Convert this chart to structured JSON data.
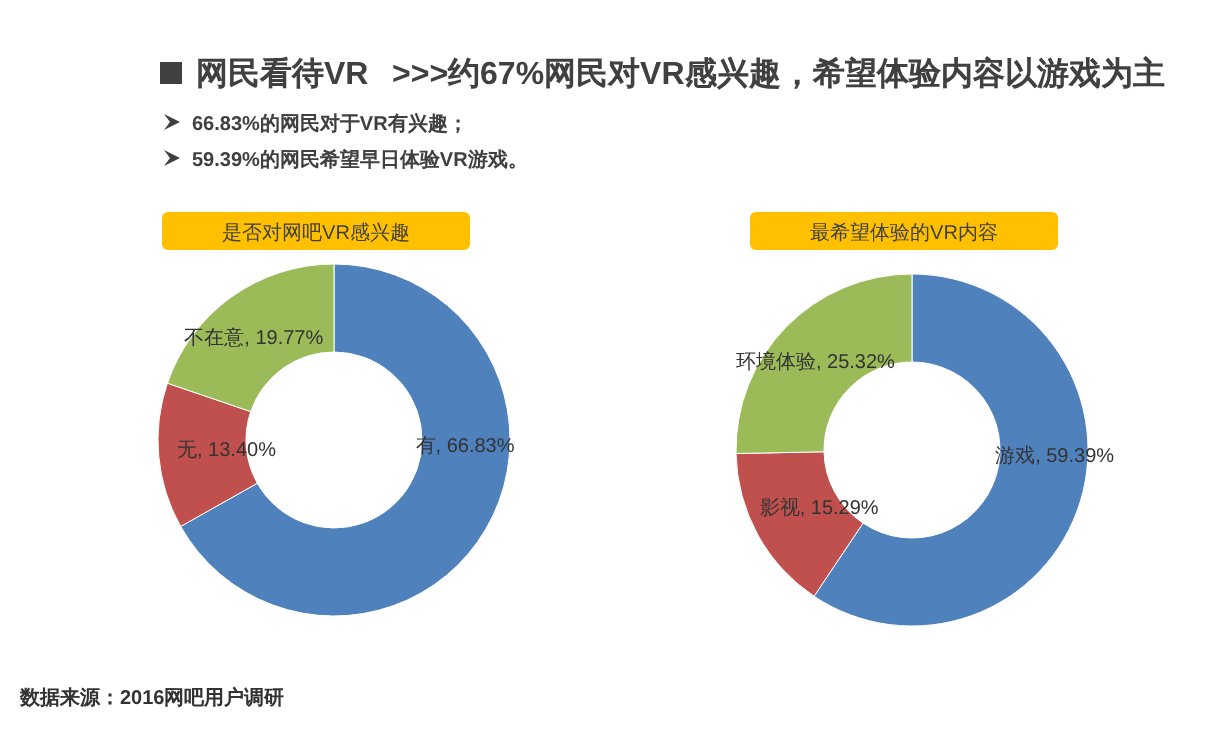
{
  "chart_data": [
    {
      "type": "other",
      "title": "网民看待VR",
      "subtitle": ">>>约67%网民对VR感兴趣，希望体验内容以游戏为主",
      "annotations": [
        "66.83%的网民对于VR有兴趣；",
        "59.39%的网民希望早日体验VR游戏。",
        "数据来源：2016网吧用户调研"
      ]
    },
    {
      "type": "donut",
      "title": "是否对网吧VR感兴趣",
      "categories": [
        "有",
        "无",
        "不在意"
      ],
      "values": [
        66.83,
        13.4,
        19.77
      ],
      "value_labels": [
        "66.83%",
        "13.40%",
        "19.77%"
      ],
      "colors": [
        "#4f81bd",
        "#c0504d",
        "#9bbb59"
      ]
    },
    {
      "type": "donut",
      "title": "最希望体验的VR内容",
      "categories": [
        "游戏",
        "影视",
        "环境体验"
      ],
      "values": [
        59.39,
        15.29,
        25.32
      ],
      "value_labels": [
        "59.39%",
        "15.29%",
        "25.32%"
      ],
      "colors": [
        "#4f81bd",
        "#c0504d",
        "#9bbb59"
      ]
    }
  ]
}
